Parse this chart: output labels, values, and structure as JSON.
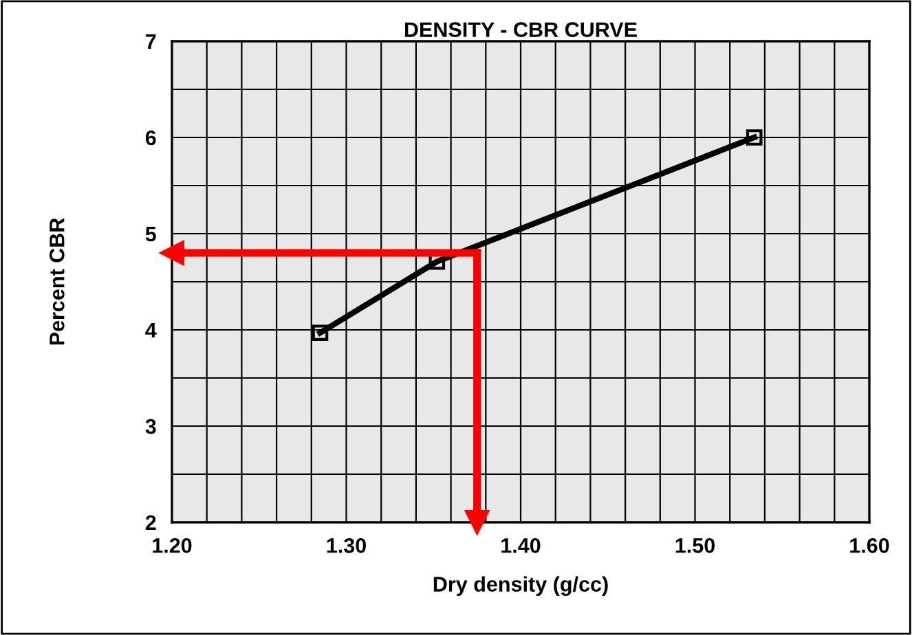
{
  "chart_data": {
    "type": "line",
    "title": "DENSITY - CBR CURVE",
    "xlabel": "Dry density (g/cc)",
    "ylabel": "Percent CBR",
    "x": [
      1.285,
      1.352,
      1.534
    ],
    "series": [
      {
        "color": "#000000",
        "values": [
          3.97,
          4.71,
          6.0
        ]
      }
    ],
    "marker": "square",
    "line_style": "solid",
    "grid": true,
    "legend": false,
    "xlim": [
      1.2,
      1.6
    ],
    "ylim": [
      2,
      7
    ],
    "xticks": [
      {
        "value": 1.2,
        "label": "1.20"
      },
      {
        "value": 1.22,
        "label": null
      },
      {
        "value": 1.24,
        "label": null
      },
      {
        "value": 1.26,
        "label": null
      },
      {
        "value": 1.28,
        "label": null
      },
      {
        "value": 1.3,
        "label": "1.30"
      },
      {
        "value": 1.32,
        "label": null
      },
      {
        "value": 1.34,
        "label": null
      },
      {
        "value": 1.36,
        "label": null
      },
      {
        "value": 1.38,
        "label": null
      },
      {
        "value": 1.4,
        "label": "1.40"
      },
      {
        "value": 1.42,
        "label": null
      },
      {
        "value": 1.44,
        "label": null
      },
      {
        "value": 1.46,
        "label": null
      },
      {
        "value": 1.48,
        "label": null
      },
      {
        "value": 1.5,
        "label": "1.50"
      },
      {
        "value": 1.52,
        "label": null
      },
      {
        "value": 1.54,
        "label": null
      },
      {
        "value": 1.56,
        "label": null
      },
      {
        "value": 1.58,
        "label": null
      },
      {
        "value": 1.6,
        "label": "1.60"
      }
    ],
    "yticks": [
      2,
      {
        "value": 2.5,
        "label": null
      },
      3,
      {
        "value": 3.5,
        "label": null
      },
      4,
      {
        "value": 4.5,
        "label": null
      },
      5,
      {
        "value": 5.5,
        "label": null
      },
      6,
      {
        "value": 6.5,
        "label": null
      },
      7
    ],
    "ref_lines": [
      {
        "axis": "x",
        "value": 1.375,
        "color": "#ff0000",
        "line_style": "solid"
      },
      {
        "axis": "y",
        "value": 4.8,
        "color": "#ff0000",
        "line_style": "solid"
      }
    ]
  }
}
